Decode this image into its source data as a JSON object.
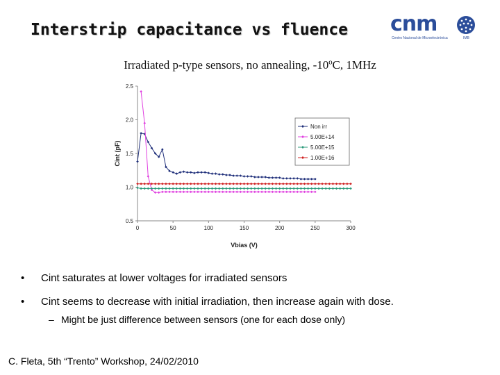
{
  "slide": {
    "title": "Interstrip capacitance vs fluence",
    "subtitle": "Irradiated p-type sensors, no annealing, -10ºC, 1MHz",
    "logo": {
      "word": "cnm",
      "caption": "Centro Nacional de Microelectrónica",
      "institution": "IMB",
      "colors": {
        "primary": "#2b4d9a"
      }
    },
    "bullets": [
      "Cint saturates at lower voltages for irradiated sensors",
      "Cint seems to decrease with initial irradiation, then increase again with dose."
    ],
    "bullet_glyph": "•",
    "sub_bullet": "Might be just difference between sensors (one for each dose only)",
    "sub_bullet_glyph": "–",
    "footer": "C. Fleta, 5th “Trento” Workshop, 24/02/2010"
  },
  "chart_data": {
    "type": "line",
    "xlabel": "Vbias (V)",
    "ylabel": "Cint (pF)",
    "xlim": [
      0,
      300
    ],
    "ylim": [
      0.5,
      2.5
    ],
    "xticks": [
      0,
      50,
      100,
      150,
      200,
      250,
      300
    ],
    "yticks": [
      0.5,
      1.0,
      1.5,
      2.0,
      2.5
    ],
    "ytick_labels": [
      "0.5",
      "1.0",
      "1.5",
      "2.0",
      "2.5"
    ],
    "grid": false,
    "legend_position": "top-right",
    "series": [
      {
        "name": "Non irr",
        "color": "#1f2f7a",
        "marker": "diamond",
        "x": [
          0,
          5,
          10,
          15,
          20,
          25,
          30,
          35,
          40,
          45,
          50,
          55,
          60,
          65,
          70,
          75,
          80,
          85,
          90,
          95,
          100,
          105,
          110,
          115,
          120,
          125,
          130,
          135,
          140,
          145,
          150,
          155,
          160,
          165,
          170,
          175,
          180,
          185,
          190,
          195,
          200,
          205,
          210,
          215,
          220,
          225,
          230,
          235,
          240,
          245,
          250
        ],
        "y": [
          1.38,
          1.8,
          1.79,
          1.67,
          1.58,
          1.5,
          1.45,
          1.56,
          1.3,
          1.24,
          1.22,
          1.2,
          1.22,
          1.23,
          1.22,
          1.22,
          1.21,
          1.22,
          1.22,
          1.22,
          1.21,
          1.2,
          1.2,
          1.19,
          1.19,
          1.18,
          1.18,
          1.17,
          1.17,
          1.17,
          1.16,
          1.16,
          1.16,
          1.15,
          1.15,
          1.15,
          1.15,
          1.14,
          1.14,
          1.14,
          1.14,
          1.13,
          1.13,
          1.13,
          1.13,
          1.13,
          1.12,
          1.12,
          1.12,
          1.12,
          1.12
        ]
      },
      {
        "name": "5.00E+14",
        "color": "#e040e0",
        "marker": "diamond",
        "x": [
          5,
          10,
          15,
          20,
          25,
          30,
          35,
          40,
          45,
          50,
          55,
          60,
          65,
          70,
          75,
          80,
          85,
          90,
          95,
          100,
          105,
          110,
          115,
          120,
          125,
          130,
          135,
          140,
          145,
          150,
          155,
          160,
          165,
          170,
          175,
          180,
          185,
          190,
          195,
          200,
          205,
          210,
          215,
          220,
          225,
          230,
          235,
          240,
          245,
          250
        ],
        "y": [
          2.42,
          1.95,
          1.16,
          0.96,
          0.92,
          0.92,
          0.93,
          0.93,
          0.93,
          0.93,
          0.93,
          0.93,
          0.93,
          0.93,
          0.93,
          0.93,
          0.93,
          0.93,
          0.93,
          0.93,
          0.93,
          0.93,
          0.93,
          0.93,
          0.93,
          0.93,
          0.93,
          0.93,
          0.93,
          0.93,
          0.93,
          0.93,
          0.93,
          0.93,
          0.93,
          0.93,
          0.93,
          0.93,
          0.93,
          0.93,
          0.93,
          0.93,
          0.93,
          0.93,
          0.93,
          0.93,
          0.93,
          0.93,
          0.93,
          0.93
        ]
      },
      {
        "name": "5.00E+15",
        "color": "#2a9a7a",
        "marker": "diamond",
        "x": [
          0,
          5,
          10,
          15,
          20,
          25,
          30,
          35,
          40,
          45,
          50,
          55,
          60,
          65,
          70,
          75,
          80,
          85,
          90,
          95,
          100,
          105,
          110,
          115,
          120,
          125,
          130,
          135,
          140,
          145,
          150,
          155,
          160,
          165,
          170,
          175,
          180,
          185,
          190,
          195,
          200,
          205,
          210,
          215,
          220,
          225,
          230,
          235,
          240,
          245,
          250,
          255,
          260,
          265,
          270,
          275,
          280,
          285,
          290,
          295,
          300
        ],
        "y": [
          0.99,
          0.98,
          0.98,
          0.98,
          0.98,
          0.98,
          0.98,
          0.98,
          0.98,
          0.98,
          0.98,
          0.98,
          0.98,
          0.98,
          0.98,
          0.98,
          0.98,
          0.98,
          0.98,
          0.98,
          0.98,
          0.98,
          0.98,
          0.98,
          0.98,
          0.98,
          0.98,
          0.98,
          0.98,
          0.98,
          0.98,
          0.98,
          0.98,
          0.98,
          0.98,
          0.98,
          0.98,
          0.98,
          0.98,
          0.98,
          0.98,
          0.98,
          0.98,
          0.98,
          0.98,
          0.98,
          0.98,
          0.98,
          0.98,
          0.98,
          0.98,
          0.98,
          0.98,
          0.98,
          0.98,
          0.98,
          0.98,
          0.98,
          0.98,
          0.98,
          0.98
        ]
      },
      {
        "name": "1.00E+16",
        "color": "#d02020",
        "marker": "diamond",
        "x": [
          0,
          5,
          10,
          15,
          20,
          25,
          30,
          35,
          40,
          45,
          50,
          55,
          60,
          65,
          70,
          75,
          80,
          85,
          90,
          95,
          100,
          105,
          110,
          115,
          120,
          125,
          130,
          135,
          140,
          145,
          150,
          155,
          160,
          165,
          170,
          175,
          180,
          185,
          190,
          195,
          200,
          205,
          210,
          215,
          220,
          225,
          230,
          235,
          240,
          245,
          250,
          255,
          260,
          265,
          270,
          275,
          280,
          285,
          290,
          295,
          300
        ],
        "y": [
          1.05,
          1.05,
          1.05,
          1.05,
          1.05,
          1.05,
          1.05,
          1.05,
          1.05,
          1.05,
          1.05,
          1.05,
          1.05,
          1.05,
          1.05,
          1.05,
          1.05,
          1.05,
          1.05,
          1.05,
          1.05,
          1.05,
          1.05,
          1.05,
          1.05,
          1.05,
          1.05,
          1.05,
          1.05,
          1.05,
          1.05,
          1.05,
          1.05,
          1.05,
          1.05,
          1.05,
          1.05,
          1.05,
          1.05,
          1.05,
          1.05,
          1.05,
          1.05,
          1.05,
          1.05,
          1.05,
          1.05,
          1.05,
          1.05,
          1.05,
          1.05,
          1.05,
          1.05,
          1.05,
          1.05,
          1.05,
          1.05,
          1.05,
          1.05,
          1.05,
          1.05
        ]
      }
    ]
  }
}
